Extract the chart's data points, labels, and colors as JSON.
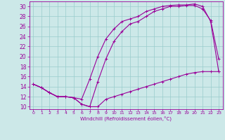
{
  "xlabel": "Windchill (Refroidissement éolien,°C)",
  "background_color": "#cce8e8",
  "line_color": "#990099",
  "xlim": [
    -0.5,
    23.5
  ],
  "ylim": [
    9.5,
    31
  ],
  "xticks": [
    0,
    1,
    2,
    3,
    4,
    5,
    6,
    7,
    8,
    9,
    10,
    11,
    12,
    13,
    14,
    15,
    16,
    17,
    18,
    19,
    20,
    21,
    22,
    23
  ],
  "yticks": [
    10,
    12,
    14,
    16,
    18,
    20,
    22,
    24,
    26,
    28,
    30
  ],
  "grid_color": "#99cccc",
  "line1_x": [
    0,
    1,
    2,
    3,
    4,
    5,
    6,
    7,
    8,
    9,
    10,
    11,
    12,
    13,
    14,
    15,
    16,
    17,
    18,
    19,
    20,
    21,
    22,
    23
  ],
  "line1_y": [
    14.5,
    13.8,
    12.8,
    12.0,
    12.0,
    11.8,
    10.5,
    10.0,
    15.0,
    19.5,
    23.0,
    25.0,
    26.5,
    27.0,
    28.0,
    29.0,
    29.5,
    30.0,
    30.0,
    30.2,
    30.2,
    29.5,
    27.2,
    19.5
  ],
  "line2_x": [
    0,
    1,
    2,
    3,
    4,
    5,
    6,
    7,
    8,
    9,
    10,
    11,
    12,
    13,
    14,
    15,
    16,
    17,
    18,
    19,
    20,
    21,
    22,
    23
  ],
  "line2_y": [
    14.5,
    13.8,
    12.8,
    12.0,
    12.0,
    11.8,
    11.5,
    15.5,
    20.0,
    23.5,
    25.5,
    27.0,
    27.5,
    28.0,
    29.0,
    29.5,
    30.0,
    30.2,
    30.3,
    30.3,
    30.5,
    30.0,
    27.0,
    17.0
  ],
  "line3_x": [
    0,
    1,
    2,
    3,
    4,
    5,
    6,
    7,
    8,
    9,
    10,
    11,
    12,
    13,
    14,
    15,
    16,
    17,
    18,
    19,
    20,
    21,
    22,
    23
  ],
  "line3_y": [
    14.5,
    13.8,
    12.8,
    12.0,
    12.0,
    11.8,
    10.5,
    10.0,
    10.0,
    11.5,
    12.0,
    12.5,
    13.0,
    13.5,
    14.0,
    14.5,
    15.0,
    15.5,
    16.0,
    16.5,
    16.8,
    17.0,
    17.0,
    17.0
  ]
}
